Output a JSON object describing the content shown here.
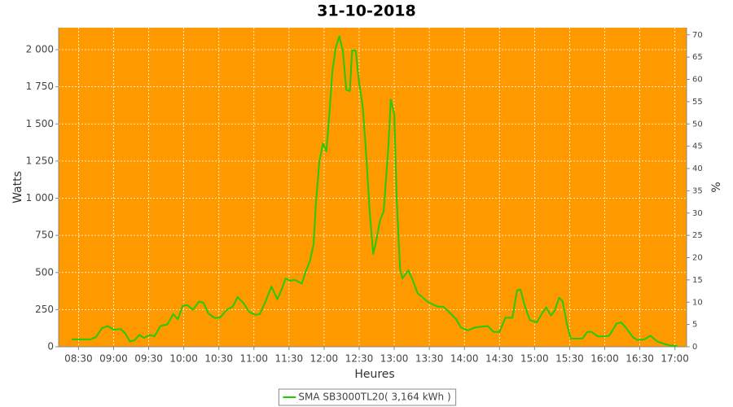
{
  "chart_data": {
    "type": "line",
    "title": "31-10-2018",
    "x_label": "Heures",
    "y_label": "Watts",
    "y2_label": "%",
    "xlim": [
      "08:13",
      "17:10"
    ],
    "xticks": [
      "08:30",
      "09:00",
      "09:30",
      "10:00",
      "10:30",
      "11:00",
      "11:30",
      "12:00",
      "12:30",
      "13:00",
      "13:30",
      "14:00",
      "14:30",
      "15:00",
      "15:30",
      "16:00",
      "16:30",
      "17:00"
    ],
    "ylim": [
      0,
      2148
    ],
    "yticks": [
      0,
      250,
      500,
      750,
      {
        "value": 1000,
        "label": "1 000"
      },
      {
        "value": 1250,
        "label": "1 250"
      },
      {
        "value": 1500,
        "label": "1 500"
      },
      {
        "value": 1750,
        "label": "1 750"
      },
      {
        "value": 2000,
        "label": "2 000"
      }
    ],
    "y2lim": [
      0,
      71.6
    ],
    "y2ticks": [
      0,
      5,
      10,
      15,
      20,
      25,
      30,
      35,
      40,
      45,
      50,
      55,
      60,
      65,
      70
    ],
    "grid": true,
    "background": "#ff9900",
    "legend": "bottom",
    "x": [
      "08:24",
      "08:30",
      "08:40",
      "08:45",
      "08:50",
      "08:55",
      "09:00",
      "09:06",
      "09:10",
      "09:14",
      "09:18",
      "09:22",
      "09:26",
      "09:31",
      "09:35",
      "09:40",
      "09:46",
      "09:51",
      "09:55",
      "09:59",
      "10:03",
      "10:08",
      "10:13",
      "10:17",
      "10:21",
      "10:26",
      "10:31",
      "10:37",
      "10:42",
      "10:46",
      "10:51",
      "10:56",
      "11:01",
      "11:05",
      "11:10",
      "11:15",
      "11:20",
      "11:24",
      "11:27",
      "11:31",
      "11:35",
      "11:41",
      "11:44",
      "11:48",
      "11:51",
      "11:53",
      "11:56",
      "11:59",
      "12:02",
      "12:05",
      "12:07",
      "12:10",
      "12:13",
      "12:16",
      "12:19",
      "12:22",
      "12:24",
      "12:27",
      "12:30",
      "12:33",
      "12:36",
      "12:39",
      "12:42",
      "12:44",
      "12:48",
      "12:51",
      "12:55",
      "12:57",
      "13:00",
      "13:02",
      "13:05",
      "13:07",
      "13:12",
      "13:16",
      "13:20",
      "13:24",
      "13:28",
      "13:32",
      "13:37",
      "13:42",
      "13:48",
      "13:53",
      "13:57",
      "14:03",
      "14:09",
      "14:14",
      "14:20",
      "14:25",
      "14:30",
      "14:35",
      "14:41",
      "14:45",
      "14:48",
      "14:52",
      "14:56",
      "15:02",
      "15:06",
      "15:10",
      "15:14",
      "15:17",
      "15:21",
      "15:24",
      "15:28",
      "15:31",
      "15:35",
      "15:41",
      "15:45",
      "15:49",
      "15:54",
      "16:00",
      "16:04",
      "16:10",
      "16:14",
      "16:18",
      "16:24",
      "16:28",
      "16:34",
      "16:39",
      "16:45",
      "16:51",
      "16:55",
      "17:02"
    ],
    "series": [
      {
        "name": "SMA SB3000TL20( 3,164 kWh )",
        "color": "#22cc00",
        "values": [
          50,
          50,
          50,
          65,
          125,
          140,
          115,
          120,
          90,
          35,
          45,
          80,
          60,
          80,
          70,
          140,
          150,
          220,
          185,
          275,
          280,
          250,
          305,
          295,
          225,
          195,
          195,
          250,
          270,
          335,
          295,
          235,
          215,
          220,
          305,
          405,
          320,
          390,
          460,
          445,
          450,
          425,
          500,
          580,
          690,
          965,
          1250,
          1370,
          1315,
          1620,
          1850,
          2015,
          2090,
          1995,
          1730,
          1720,
          1995,
          1995,
          1775,
          1620,
          1295,
          910,
          625,
          690,
          855,
          910,
          1350,
          1665,
          1565,
          1020,
          525,
          460,
          515,
          445,
          360,
          335,
          305,
          290,
          270,
          270,
          225,
          185,
          130,
          110,
          130,
          135,
          140,
          100,
          100,
          195,
          195,
          380,
          385,
          265,
          180,
          165,
          220,
          265,
          210,
          240,
          330,
          305,
          140,
          55,
          55,
          55,
          100,
          100,
          70,
          70,
          75,
          155,
          165,
          130,
          65,
          45,
          50,
          75,
          35,
          20,
          10,
          5
        ]
      }
    ]
  }
}
